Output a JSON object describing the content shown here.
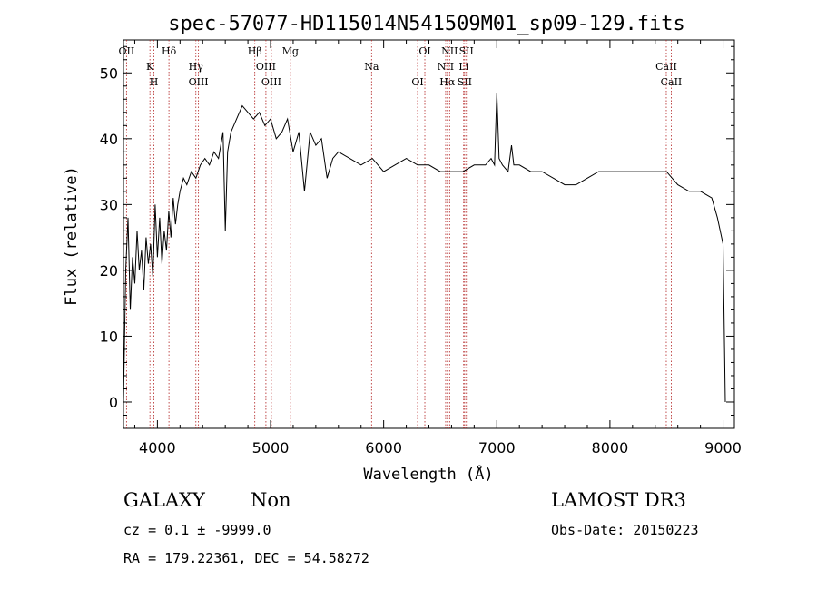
{
  "chart_data": {
    "type": "line",
    "title": "spec-57077-HD115014N541509M01_sp09-129.fits",
    "xlabel": "Wavelength (Å)",
    "ylabel": "Flux (relative)",
    "xlim": [
      3700,
      9100
    ],
    "ylim": [
      -4,
      55
    ],
    "xticks": [
      4000,
      5000,
      6000,
      7000,
      8000,
      9000
    ],
    "yticks": [
      0,
      10,
      20,
      30,
      40,
      50
    ],
    "grid": false,
    "series": [
      {
        "x": [
          3700,
          3720,
          3740,
          3760,
          3780,
          3800,
          3820,
          3840,
          3860,
          3880,
          3900,
          3920,
          3940,
          3960,
          3980,
          4000,
          4020,
          4040,
          4060,
          4080,
          4100,
          4120,
          4140,
          4160,
          4180,
          4200,
          4230,
          4260,
          4300,
          4340,
          4380,
          4420,
          4460,
          4500,
          4540,
          4580,
          4600,
          4620,
          4650,
          4700,
          4750,
          4800,
          4850,
          4900,
          4950,
          5000,
          5050,
          5100,
          5150,
          5200,
          5250,
          5300,
          5350,
          5400,
          5450,
          5500,
          5550,
          5600,
          5700,
          5800,
          5900,
          6000,
          6100,
          6200,
          6300,
          6400,
          6500,
          6600,
          6700,
          6800,
          6900,
          6950,
          6980,
          7000,
          7020,
          7050,
          7100,
          7130,
          7150,
          7200,
          7300,
          7400,
          7500,
          7600,
          7700,
          7800,
          7900,
          8000,
          8100,
          8200,
          8300,
          8400,
          8500,
          8600,
          8700,
          8800,
          8900,
          8950,
          9000,
          9020
        ],
        "y": [
          0,
          20,
          28,
          14,
          22,
          18,
          26,
          20,
          23,
          17,
          25,
          21,
          24,
          19,
          30,
          22,
          28,
          21,
          26,
          23,
          29,
          25,
          31,
          27,
          30,
          32,
          34,
          33,
          35,
          34,
          36,
          37,
          36,
          38,
          37,
          41,
          26,
          38,
          41,
          43,
          45,
          44,
          43,
          44,
          42,
          43,
          40,
          41,
          43,
          38,
          41,
          32,
          41,
          39,
          40,
          34,
          37,
          38,
          37,
          36,
          37,
          35,
          36,
          37,
          36,
          36,
          35,
          35,
          35,
          36,
          36,
          37,
          36,
          47,
          37,
          36,
          35,
          39,
          36,
          36,
          35,
          35,
          34,
          33,
          33,
          34,
          35,
          35,
          35,
          35,
          35,
          35,
          35,
          33,
          32,
          32,
          31,
          28,
          24,
          0
        ]
      }
    ],
    "line_markers": [
      {
        "wavelength": 3727,
        "label": "OII"
      },
      {
        "wavelength": 3934,
        "label": "K"
      },
      {
        "wavelength": 3969,
        "label": "H"
      },
      {
        "wavelength": 4102,
        "label": "Hδ"
      },
      {
        "wavelength": 4340,
        "label": "Hγ"
      },
      {
        "wavelength": 4363,
        "label": "OIII"
      },
      {
        "wavelength": 4861,
        "label": "Hβ"
      },
      {
        "wavelength": 4959,
        "label": "OIII"
      },
      {
        "wavelength": 5007,
        "label": "OIII"
      },
      {
        "wavelength": 5175,
        "label": "Mg"
      },
      {
        "wavelength": 5893,
        "label": "Na"
      },
      {
        "wavelength": 6300,
        "label": "OI"
      },
      {
        "wavelength": 6364,
        "label": "OI"
      },
      {
        "wavelength": 6548,
        "label": "NII"
      },
      {
        "wavelength": 6563,
        "label": "Hα"
      },
      {
        "wavelength": 6583,
        "label": "NII"
      },
      {
        "wavelength": 6707,
        "label": "Li"
      },
      {
        "wavelength": 6716,
        "label": "SII"
      },
      {
        "wavelength": 6731,
        "label": "SII"
      },
      {
        "wavelength": 8498,
        "label": "CaII"
      },
      {
        "wavelength": 8542,
        "label": "CaII"
      }
    ]
  },
  "info": {
    "object_class": "GALAXY",
    "subclass": "Non",
    "survey": "LAMOST DR3",
    "cz_line": "cz = 0.1 ± -9999.0",
    "obs_date": "Obs-Date: 20150223",
    "coords": "RA = 179.22361, DEC =  54.58272"
  },
  "colors": {
    "spectrum": "#000000",
    "markers": "#b22222"
  }
}
